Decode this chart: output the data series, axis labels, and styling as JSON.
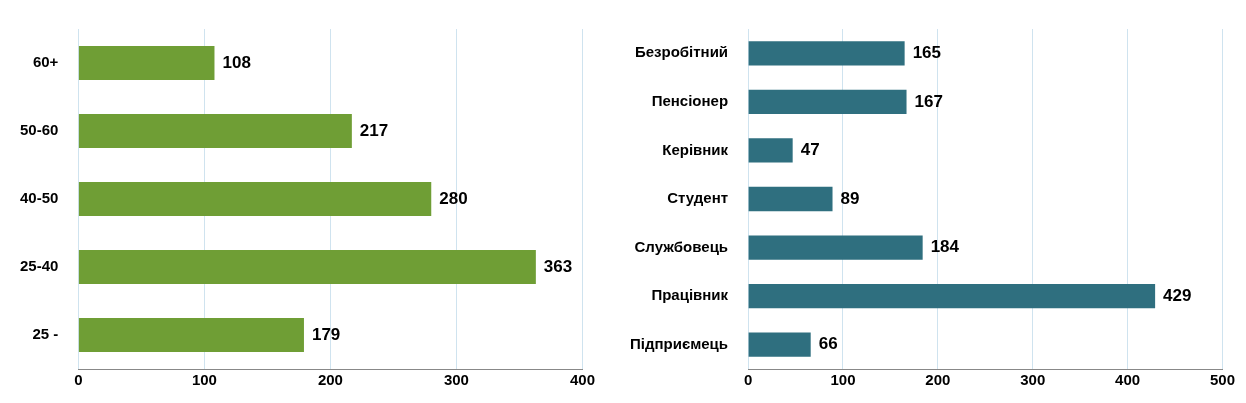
{
  "chart_data": [
    {
      "type": "bar",
      "orientation": "horizontal",
      "categories": [
        "60+",
        "50-60",
        "40-50",
        "25-40",
        "25 -"
      ],
      "series": [
        {
          "color": "#6f9e35",
          "values": [
            108,
            217,
            280,
            363,
            179
          ]
        }
      ],
      "xlim": [
        0,
        400
      ],
      "xticks": [
        0,
        100,
        200,
        300,
        400
      ],
      "grid": "x",
      "data_labels": true,
      "legend": false
    },
    {
      "type": "bar",
      "orientation": "horizontal",
      "categories": [
        "Безробітний",
        "Пенсіонер",
        "Керівник",
        "Студент",
        "Службовець",
        "Працівник",
        "Підприємець"
      ],
      "series": [
        {
          "color": "#2f6f7f",
          "values": [
            165,
            167,
            47,
            89,
            184,
            429,
            66
          ]
        }
      ],
      "xlim": [
        0,
        500
      ],
      "xticks": [
        0,
        100,
        200,
        300,
        400,
        500
      ],
      "grid": "x",
      "data_labels": true,
      "legend": false
    }
  ]
}
